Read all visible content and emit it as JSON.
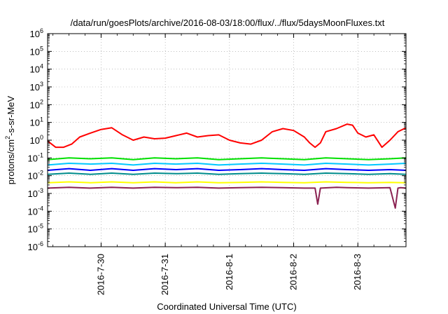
{
  "chart_data": {
    "type": "line",
    "title": "/data/run/goesPlots/archive/2016-08-03/18:00/flux/../flux/5daysMoonFluxes.txt",
    "xlabel": "Coordinated Universal Time (UTC)",
    "ylabel": {
      "pre": "protons/cm",
      "sup": "2",
      "post": "-s-sr-MeV"
    },
    "y_scale": "log",
    "ylim": [
      1e-06,
      1000000.0
    ],
    "y_ticks": [
      {
        "base": "10",
        "exp": "-6",
        "value": 1e-06
      },
      {
        "base": "10",
        "exp": "-5",
        "value": 1e-05
      },
      {
        "base": "10",
        "exp": "-4",
        "value": 0.0001
      },
      {
        "base": "10",
        "exp": "-3",
        "value": 0.001
      },
      {
        "base": "10",
        "exp": "-2",
        "value": 0.01
      },
      {
        "base": "10",
        "exp": "-1",
        "value": 0.1
      },
      {
        "base": "10",
        "exp": "0",
        "value": 1
      },
      {
        "base": "10",
        "exp": "1",
        "value": 10
      },
      {
        "base": "10",
        "exp": "2",
        "value": 100
      },
      {
        "base": "10",
        "exp": "3",
        "value": 1000
      },
      {
        "base": "10",
        "exp": "4",
        "value": 10000
      },
      {
        "base": "10",
        "exp": "5",
        "value": 100000
      },
      {
        "base": "10",
        "exp": "6",
        "value": 1000000
      }
    ],
    "xlim": [
      "2016-07-29 04:00",
      "2016-08-03 18:00"
    ],
    "x_ticks": [
      {
        "label": "2016-7-30",
        "value": "2016-07-30 00:00"
      },
      {
        "label": "2016-7-31",
        "value": "2016-07-31 00:00"
      },
      {
        "label": "2016-8-1",
        "value": "2016-08-01 00:00"
      },
      {
        "label": "2016-8-2",
        "value": "2016-08-02 00:00"
      },
      {
        "label": "2016-8-3",
        "value": "2016-08-03 00:00"
      }
    ],
    "grid": true,
    "legend": "none",
    "series": [
      {
        "color": "#ff0000",
        "x": [
          "2016-07-29 04:00",
          "2016-07-29 07:00",
          "2016-07-29 10:00",
          "2016-07-29 13:00",
          "2016-07-29 16:00",
          "2016-07-29 20:00",
          "2016-07-30 00:00",
          "2016-07-30 04:00",
          "2016-07-30 08:00",
          "2016-07-30 12:00",
          "2016-07-30 16:00",
          "2016-07-30 20:00",
          "2016-07-31 00:00",
          "2016-07-31 04:00",
          "2016-07-31 08:00",
          "2016-07-31 12:00",
          "2016-07-31 16:00",
          "2016-07-31 20:00",
          "2016-08-01 00:00",
          "2016-08-01 04:00",
          "2016-08-01 08:00",
          "2016-08-01 12:00",
          "2016-08-01 16:00",
          "2016-08-01 20:00",
          "2016-08-02 00:00",
          "2016-08-02 04:00",
          "2016-08-02 06:00",
          "2016-08-02 08:00",
          "2016-08-02 10:00",
          "2016-08-02 12:00",
          "2016-08-02 16:00",
          "2016-08-02 20:00",
          "2016-08-02 22:00",
          "2016-08-03 00:00",
          "2016-08-03 03:00",
          "2016-08-03 06:00",
          "2016-08-03 09:00",
          "2016-08-03 12:00",
          "2016-08-03 15:00",
          "2016-08-03 18:00"
        ],
        "y": [
          0.9,
          0.4,
          0.4,
          0.6,
          1.5,
          2.5,
          4.0,
          5.0,
          2.0,
          1.0,
          1.5,
          1.2,
          1.3,
          1.8,
          2.5,
          1.5,
          1.8,
          2.0,
          1.0,
          0.7,
          0.6,
          1.0,
          3.0,
          4.5,
          3.5,
          1.5,
          0.7,
          0.4,
          0.7,
          3.0,
          4.5,
          8.0,
          7.0,
          2.5,
          1.5,
          2.0,
          0.4,
          1.0,
          3.0,
          5.0
        ]
      },
      {
        "color": "#00e000",
        "x": [
          "2016-07-29 04:00",
          "2016-07-29 12:00",
          "2016-07-29 20:00",
          "2016-07-30 04:00",
          "2016-07-30 12:00",
          "2016-07-30 20:00",
          "2016-07-31 04:00",
          "2016-07-31 12:00",
          "2016-07-31 20:00",
          "2016-08-01 04:00",
          "2016-08-01 12:00",
          "2016-08-01 20:00",
          "2016-08-02 04:00",
          "2016-08-02 12:00",
          "2016-08-02 20:00",
          "2016-08-03 04:00",
          "2016-08-03 12:00",
          "2016-08-03 18:00"
        ],
        "y": [
          0.08,
          0.1,
          0.09,
          0.1,
          0.08,
          0.1,
          0.09,
          0.1,
          0.08,
          0.09,
          0.1,
          0.09,
          0.08,
          0.1,
          0.09,
          0.08,
          0.09,
          0.1
        ]
      },
      {
        "color": "#00c8ff",
        "x": [
          "2016-07-29 04:00",
          "2016-07-29 12:00",
          "2016-07-29 20:00",
          "2016-07-30 04:00",
          "2016-07-30 12:00",
          "2016-07-30 20:00",
          "2016-07-31 04:00",
          "2016-07-31 12:00",
          "2016-07-31 20:00",
          "2016-08-01 04:00",
          "2016-08-01 12:00",
          "2016-08-01 20:00",
          "2016-08-02 04:00",
          "2016-08-02 12:00",
          "2016-08-02 20:00",
          "2016-08-03 04:00",
          "2016-08-03 12:00",
          "2016-08-03 18:00"
        ],
        "y": [
          0.04,
          0.05,
          0.045,
          0.05,
          0.04,
          0.05,
          0.045,
          0.05,
          0.04,
          0.045,
          0.05,
          0.045,
          0.04,
          0.05,
          0.045,
          0.04,
          0.045,
          0.05
        ]
      },
      {
        "color": "#0000ff",
        "x": [
          "2016-07-29 04:00",
          "2016-07-29 12:00",
          "2016-07-29 20:00",
          "2016-07-30 04:00",
          "2016-07-30 12:00",
          "2016-07-30 20:00",
          "2016-07-31 04:00",
          "2016-07-31 12:00",
          "2016-07-31 20:00",
          "2016-08-01 04:00",
          "2016-08-01 12:00",
          "2016-08-01 20:00",
          "2016-08-02 04:00",
          "2016-08-02 12:00",
          "2016-08-02 20:00",
          "2016-08-03 04:00",
          "2016-08-03 12:00",
          "2016-08-03 18:00"
        ],
        "y": [
          0.02,
          0.025,
          0.02,
          0.025,
          0.02,
          0.025,
          0.022,
          0.025,
          0.02,
          0.022,
          0.025,
          0.022,
          0.02,
          0.025,
          0.022,
          0.02,
          0.022,
          0.02
        ]
      },
      {
        "color": "#008c8c",
        "x": [
          "2016-07-29 04:00",
          "2016-07-29 12:00",
          "2016-07-29 20:00",
          "2016-07-30 04:00",
          "2016-07-30 12:00",
          "2016-07-30 20:00",
          "2016-07-31 04:00",
          "2016-07-31 12:00",
          "2016-07-31 20:00",
          "2016-08-01 04:00",
          "2016-08-01 12:00",
          "2016-08-01 20:00",
          "2016-08-02 04:00",
          "2016-08-02 12:00",
          "2016-08-02 20:00",
          "2016-08-03 04:00",
          "2016-08-03 12:00",
          "2016-08-03 18:00"
        ],
        "y": [
          0.012,
          0.014,
          0.012,
          0.014,
          0.012,
          0.014,
          0.013,
          0.014,
          0.012,
          0.013,
          0.014,
          0.013,
          0.012,
          0.014,
          0.013,
          0.012,
          0.013,
          0.012
        ]
      },
      {
        "color": "#ffff00",
        "x": [
          "2016-07-29 04:00",
          "2016-07-29 12:00",
          "2016-07-29 20:00",
          "2016-07-30 04:00",
          "2016-07-30 12:00",
          "2016-07-30 20:00",
          "2016-07-31 04:00",
          "2016-07-31 12:00",
          "2016-07-31 20:00",
          "2016-08-01 04:00",
          "2016-08-01 12:00",
          "2016-08-01 20:00",
          "2016-08-02 04:00",
          "2016-08-02 12:00",
          "2016-08-02 20:00",
          "2016-08-03 04:00",
          "2016-08-03 12:00",
          "2016-08-03 18:00"
        ],
        "y": [
          0.004,
          0.0045,
          0.004,
          0.0045,
          0.004,
          0.0045,
          0.004,
          0.0045,
          0.004,
          0.0042,
          0.0045,
          0.0042,
          0.004,
          0.0045,
          0.0042,
          0.004,
          0.0042,
          0.004
        ]
      },
      {
        "color": "#8b2252",
        "x": [
          "2016-07-29 04:00",
          "2016-07-29 12:00",
          "2016-07-29 20:00",
          "2016-07-30 04:00",
          "2016-07-30 12:00",
          "2016-07-30 20:00",
          "2016-07-31 04:00",
          "2016-07-31 12:00",
          "2016-07-31 20:00",
          "2016-08-01 04:00",
          "2016-08-01 12:00",
          "2016-08-01 20:00",
          "2016-08-02 04:00",
          "2016-08-02 08:00",
          "2016-08-02 09:00",
          "2016-08-02 10:00",
          "2016-08-02 16:00",
          "2016-08-02 20:00",
          "2016-08-03 04:00",
          "2016-08-03 12:00",
          "2016-08-03 14:00",
          "2016-08-03 15:00",
          "2016-08-03 16:00",
          "2016-08-03 18:00"
        ],
        "y": [
          0.002,
          0.0022,
          0.002,
          0.0022,
          0.002,
          0.0022,
          0.0021,
          0.0022,
          0.002,
          0.0021,
          0.0022,
          0.0021,
          0.002,
          0.002,
          0.00025,
          0.002,
          0.0022,
          0.0021,
          0.002,
          0.0021,
          0.00015,
          0.002,
          0.0021,
          0.002
        ]
      }
    ]
  }
}
